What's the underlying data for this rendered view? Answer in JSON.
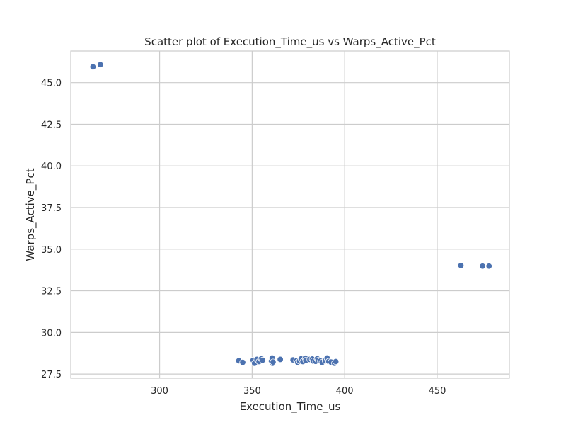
{
  "chart_data": {
    "type": "scatter",
    "title": "Scatter plot of Execution_Time_us vs Warps_Active_Pct",
    "xlabel": "Execution_Time_us",
    "ylabel": "Warps_Active_Pct",
    "xlim": [
      252,
      489
    ],
    "ylim": [
      27.25,
      46.9
    ],
    "xticks": [
      300,
      350,
      400,
      450
    ],
    "xtick_labels": [
      "300",
      "350",
      "400",
      "450"
    ],
    "yticks": [
      27.5,
      30.0,
      32.5,
      35.0,
      37.5,
      40.0,
      42.5,
      45.0
    ],
    "ytick_labels": [
      "27.5",
      "30.0",
      "32.5",
      "35.0",
      "37.5",
      "40.0",
      "42.5",
      "45.0"
    ],
    "grid": true,
    "color": "#4c72b0",
    "points": [
      {
        "x": 264.0,
        "y": 45.95
      },
      {
        "x": 268.0,
        "y": 46.08
      },
      {
        "x": 462.8,
        "y": 34.02
      },
      {
        "x": 474.5,
        "y": 33.98
      },
      {
        "x": 478.0,
        "y": 33.98
      },
      {
        "x": 342.8,
        "y": 28.3
      },
      {
        "x": 344.9,
        "y": 28.2
      },
      {
        "x": 350.5,
        "y": 28.33
      },
      {
        "x": 351.3,
        "y": 28.15
      },
      {
        "x": 352.6,
        "y": 28.38
      },
      {
        "x": 353.7,
        "y": 28.25
      },
      {
        "x": 355.0,
        "y": 28.42
      },
      {
        "x": 355.6,
        "y": 28.33
      },
      {
        "x": 360.4,
        "y": 28.28
      },
      {
        "x": 360.8,
        "y": 28.46
      },
      {
        "x": 361.0,
        "y": 28.15
      },
      {
        "x": 361.3,
        "y": 28.22
      },
      {
        "x": 365.2,
        "y": 28.38
      },
      {
        "x": 372.1,
        "y": 28.35
      },
      {
        "x": 374.0,
        "y": 28.3
      },
      {
        "x": 374.6,
        "y": 28.2
      },
      {
        "x": 375.6,
        "y": 28.28
      },
      {
        "x": 376.5,
        "y": 28.42
      },
      {
        "x": 377.4,
        "y": 28.25
      },
      {
        "x": 378.7,
        "y": 28.45
      },
      {
        "x": 379.0,
        "y": 28.32
      },
      {
        "x": 381.2,
        "y": 28.38
      },
      {
        "x": 382.5,
        "y": 28.4
      },
      {
        "x": 383.0,
        "y": 28.28
      },
      {
        "x": 384.3,
        "y": 28.26
      },
      {
        "x": 385.2,
        "y": 28.42
      },
      {
        "x": 385.7,
        "y": 28.32
      },
      {
        "x": 386.9,
        "y": 28.28
      },
      {
        "x": 387.8,
        "y": 28.2
      },
      {
        "x": 389.5,
        "y": 28.3
      },
      {
        "x": 390.5,
        "y": 28.46
      },
      {
        "x": 391.4,
        "y": 28.26
      },
      {
        "x": 392.6,
        "y": 28.22
      },
      {
        "x": 394.5,
        "y": 28.15
      },
      {
        "x": 395.2,
        "y": 28.25
      }
    ]
  }
}
